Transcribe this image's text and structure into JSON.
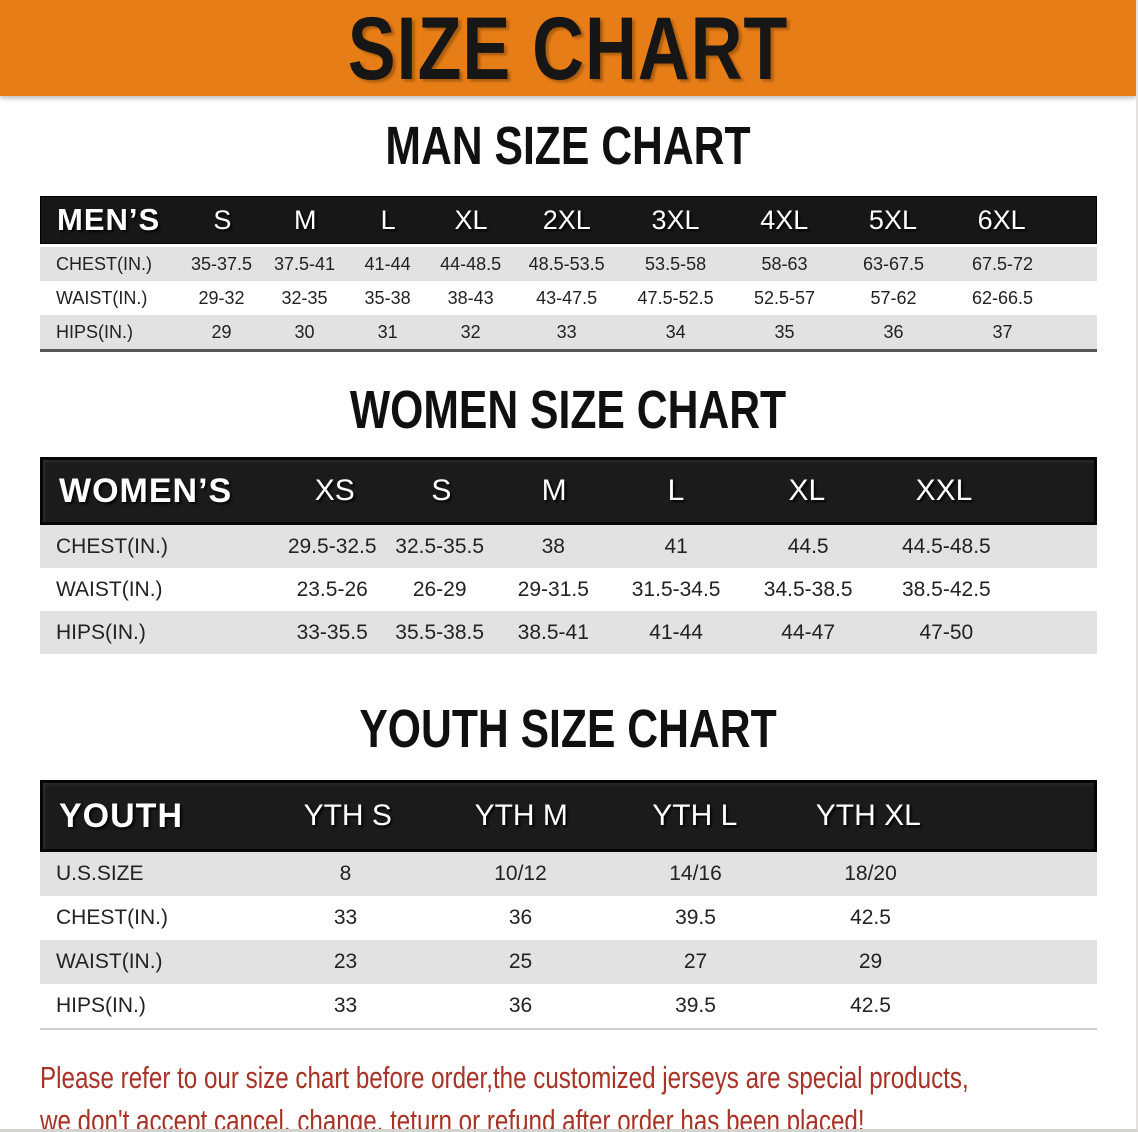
{
  "banner": {
    "title": "SIZE CHART"
  },
  "colors": {
    "banner_orange": "#e67d17",
    "table_header_black": "#171717",
    "row_stripe_gray": "#e2e2e2",
    "note_red": "#a93226"
  },
  "men": {
    "title": "MAN SIZE CHART",
    "header_label": "MEN’S",
    "columns": [
      "S",
      "M",
      "L",
      "XL",
      "2XL",
      "3XL",
      "4XL",
      "5XL",
      "6XL"
    ],
    "rows": [
      {
        "label": "CHEST(IN.)",
        "values": [
          "35-37.5",
          "37.5-41",
          "41-44",
          "44-48.5",
          "48.5-53.5",
          "53.5-58",
          "58-63",
          "63-67.5",
          "67.5-72"
        ]
      },
      {
        "label": "WAIST(IN.)",
        "values": [
          "29-32",
          "32-35",
          "35-38",
          "38-43",
          "43-47.5",
          "47.5-52.5",
          "52.5-57",
          "57-62",
          "62-66.5"
        ]
      },
      {
        "label": "HIPS(IN.)",
        "values": [
          "29",
          "30",
          "31",
          "32",
          "33",
          "34",
          "35",
          "36",
          "37"
        ]
      }
    ]
  },
  "women": {
    "title": "WOMEN SIZE CHART",
    "header_label": "WOMEN’S",
    "columns": [
      "XS",
      "S",
      "M",
      "L",
      "XL",
      "XXL"
    ],
    "rows": [
      {
        "label": "CHEST(IN.)",
        "values": [
          "29.5-32.5",
          "32.5-35.5",
          "38",
          "41",
          "44.5",
          "44.5-48.5"
        ]
      },
      {
        "label": "WAIST(IN.)",
        "values": [
          "23.5-26",
          "26-29",
          "29-31.5",
          "31.5-34.5",
          "34.5-38.5",
          "38.5-42.5"
        ]
      },
      {
        "label": "HIPS(IN.)",
        "values": [
          "33-35.5",
          "35.5-38.5",
          "38.5-41",
          "41-44",
          "44-47",
          "47-50"
        ]
      }
    ]
  },
  "youth": {
    "title": "YOUTH SIZE CHART",
    "header_label": "YOUTH",
    "columns": [
      "YTH S",
      "YTH M",
      "YTH L",
      "YTH XL"
    ],
    "rows": [
      {
        "label": "U.S.SIZE",
        "values": [
          "8",
          "10/12",
          "14/16",
          "18/20"
        ]
      },
      {
        "label": "CHEST(IN.)",
        "values": [
          "33",
          "36",
          "39.5",
          "42.5"
        ]
      },
      {
        "label": "WAIST(IN.)",
        "values": [
          "23",
          "25",
          "27",
          "29"
        ]
      },
      {
        "label": "HIPS(IN.)",
        "values": [
          "33",
          "36",
          "39.5",
          "42.5"
        ]
      }
    ]
  },
  "note": {
    "line1": "Please refer to our size chart before order,the customized jerseys are special products,",
    "line2": "we don't accept cancel, change, teturn or refund after order has been placed!"
  }
}
